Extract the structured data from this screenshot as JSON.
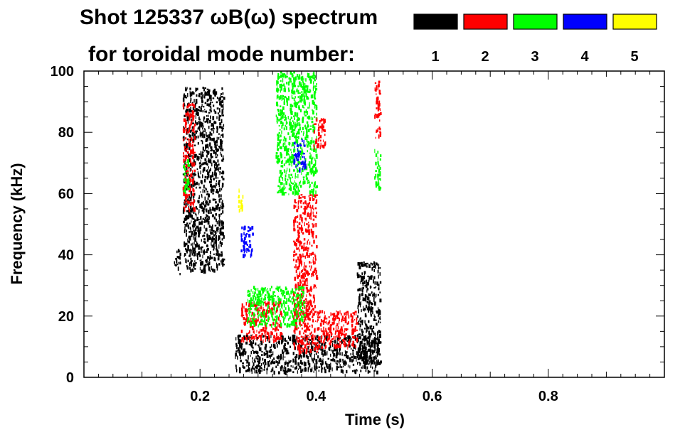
{
  "chart_data": {
    "type": "heatmap",
    "title": "Shot 125337 ωB(ω) spectrum",
    "subtitle": "for toroidal mode number:",
    "xlabel": "Time (s)",
    "ylabel": "Frequency (kHz)",
    "xlim": [
      0.0,
      1.0
    ],
    "ylim": [
      0,
      100
    ],
    "x_ticks": [
      {
        "value": 0.2,
        "label": "0.2"
      },
      {
        "value": 0.4,
        "label": "0.4"
      },
      {
        "value": 0.6,
        "label": "0.6"
      },
      {
        "value": 0.8,
        "label": "0.8"
      }
    ],
    "y_ticks": [
      {
        "value": 0,
        "label": "0"
      },
      {
        "value": 20,
        "label": "20"
      },
      {
        "value": 40,
        "label": "40"
      },
      {
        "value": 60,
        "label": "60"
      },
      {
        "value": 80,
        "label": "80"
      },
      {
        "value": 100,
        "label": "100"
      }
    ],
    "legend": {
      "placement": "top-right",
      "entries": [
        {
          "label": "1",
          "color": "#000000"
        },
        {
          "label": "2",
          "color": "#ff0000"
        },
        {
          "label": "3",
          "color": "#00ff00"
        },
        {
          "label": "4",
          "color": "#0000ff"
        },
        {
          "label": "5",
          "color": "#ffff00"
        }
      ]
    },
    "series": [
      {
        "mode": "1",
        "color": "#000000",
        "regions": [
          {
            "t": [
              0.17,
              0.24
            ],
            "f": [
              35,
              95
            ]
          },
          {
            "t": [
              0.155,
              0.165
            ],
            "f": [
              34,
              42
            ]
          },
          {
            "t": [
              0.26,
              0.51
            ],
            "f": [
              2,
              14
            ]
          },
          {
            "t": [
              0.47,
              0.51
            ],
            "f": [
              5,
              38
            ]
          }
        ]
      },
      {
        "mode": "2",
        "color": "#ff0000",
        "regions": [
          {
            "t": [
              0.27,
              0.34
            ],
            "f": [
              12,
              25
            ]
          },
          {
            "t": [
              0.36,
              0.4
            ],
            "f": [
              8,
              60
            ]
          },
          {
            "t": [
              0.4,
              0.47
            ],
            "f": [
              10,
              22
            ]
          },
          {
            "t": [
              0.395,
              0.415
            ],
            "f": [
              75,
              85
            ]
          },
          {
            "t": [
              0.5,
              0.51
            ],
            "f": [
              78,
              97
            ]
          },
          {
            "t": [
              0.17,
              0.19
            ],
            "f": [
              55,
              90
            ]
          }
        ]
      },
      {
        "mode": "3",
        "color": "#00ff00",
        "regions": [
          {
            "t": [
              0.33,
              0.4
            ],
            "f": [
              60,
              100
            ]
          },
          {
            "t": [
              0.28,
              0.38
            ],
            "f": [
              17,
              30
            ]
          },
          {
            "t": [
              0.17,
              0.18
            ],
            "f": [
              60,
              72
            ]
          },
          {
            "t": [
              0.5,
              0.51
            ],
            "f": [
              60,
              75
            ]
          }
        ]
      },
      {
        "mode": "4",
        "color": "#0000ff",
        "regions": [
          {
            "t": [
              0.27,
              0.29
            ],
            "f": [
              40,
              50
            ]
          },
          {
            "t": [
              0.36,
              0.38
            ],
            "f": [
              68,
              78
            ]
          }
        ]
      },
      {
        "mode": "5",
        "color": "#ffff00",
        "regions": [
          {
            "t": [
              0.265,
              0.275
            ],
            "f": [
              55,
              62
            ]
          }
        ]
      }
    ]
  }
}
